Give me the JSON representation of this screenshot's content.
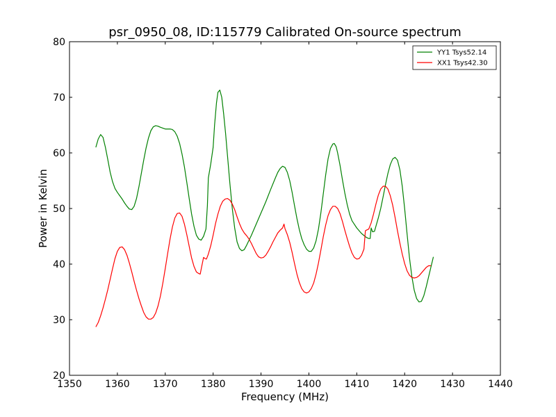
{
  "chart_data": {
    "type": "line",
    "title": "psr_0950_08, ID:115779 Calibrated On-source spectrum",
    "xlabel": "Frequency (MHz)",
    "ylabel": "Power in Kelvin",
    "xlim": [
      1350,
      1440
    ],
    "ylim": [
      20,
      80
    ],
    "xticks": [
      1350,
      1360,
      1370,
      1380,
      1390,
      1400,
      1410,
      1420,
      1430,
      1440
    ],
    "yticks": [
      20,
      30,
      40,
      50,
      60,
      70,
      80
    ],
    "grid": false,
    "legend_position": "top-right",
    "series": [
      {
        "name": "YY1 Tsys52.14",
        "color": "#008000",
        "points": [
          [
            1355.5,
            61.0
          ],
          [
            1356.0,
            62.5
          ],
          [
            1356.5,
            63.3
          ],
          [
            1357.0,
            62.8
          ],
          [
            1357.5,
            61.0
          ],
          [
            1358.0,
            58.8
          ],
          [
            1358.5,
            56.5
          ],
          [
            1359.0,
            54.8
          ],
          [
            1359.5,
            53.6
          ],
          [
            1360.0,
            52.9
          ],
          [
            1360.5,
            52.3
          ],
          [
            1361.0,
            51.7
          ],
          [
            1361.5,
            51.0
          ],
          [
            1362.0,
            50.4
          ],
          [
            1362.5,
            49.9
          ],
          [
            1363.0,
            49.8
          ],
          [
            1363.5,
            50.4
          ],
          [
            1364.0,
            51.8
          ],
          [
            1364.5,
            53.9
          ],
          [
            1365.0,
            56.3
          ],
          [
            1365.5,
            58.7
          ],
          [
            1366.0,
            60.9
          ],
          [
            1366.5,
            62.7
          ],
          [
            1367.0,
            64.0
          ],
          [
            1367.5,
            64.7
          ],
          [
            1368.0,
            64.9
          ],
          [
            1368.5,
            64.8
          ],
          [
            1369.0,
            64.6
          ],
          [
            1370.0,
            64.3
          ],
          [
            1371.0,
            64.3
          ],
          [
            1371.5,
            64.2
          ],
          [
            1372.0,
            63.8
          ],
          [
            1372.5,
            63.0
          ],
          [
            1373.0,
            61.7
          ],
          [
            1373.5,
            59.8
          ],
          [
            1374.0,
            57.5
          ],
          [
            1374.5,
            54.7
          ],
          [
            1375.0,
            51.8
          ],
          [
            1375.5,
            49.0
          ],
          [
            1376.0,
            46.8
          ],
          [
            1376.5,
            45.2
          ],
          [
            1377.0,
            44.5
          ],
          [
            1377.5,
            44.3
          ],
          [
            1378.0,
            45.0
          ],
          [
            1378.5,
            46.3
          ],
          [
            1378.8,
            50.5
          ],
          [
            1379.0,
            55.5
          ],
          [
            1379.5,
            58.0
          ],
          [
            1380.0,
            61.0
          ],
          [
            1380.3,
            65.0
          ],
          [
            1380.7,
            69.0
          ],
          [
            1381.0,
            70.9
          ],
          [
            1381.4,
            71.3
          ],
          [
            1381.8,
            70.0
          ],
          [
            1382.2,
            67.0
          ],
          [
            1382.6,
            63.5
          ],
          [
            1383.0,
            59.5
          ],
          [
            1383.5,
            54.5
          ],
          [
            1384.0,
            50.0
          ],
          [
            1384.5,
            46.5
          ],
          [
            1385.0,
            44.0
          ],
          [
            1385.5,
            42.8
          ],
          [
            1386.0,
            42.4
          ],
          [
            1386.5,
            42.6
          ],
          [
            1387.0,
            43.4
          ],
          [
            1388.0,
            45.2
          ],
          [
            1389.0,
            47.2
          ],
          [
            1390.0,
            49.2
          ],
          [
            1391.0,
            51.2
          ],
          [
            1392.0,
            53.4
          ],
          [
            1393.0,
            55.5
          ],
          [
            1393.5,
            56.5
          ],
          [
            1394.0,
            57.2
          ],
          [
            1394.5,
            57.6
          ],
          [
            1395.0,
            57.4
          ],
          [
            1395.5,
            56.5
          ],
          [
            1396.0,
            55.0
          ],
          [
            1396.5,
            52.9
          ],
          [
            1397.0,
            50.5
          ],
          [
            1397.5,
            48.2
          ],
          [
            1398.0,
            46.2
          ],
          [
            1398.5,
            44.6
          ],
          [
            1399.0,
            43.5
          ],
          [
            1399.5,
            42.7
          ],
          [
            1400.0,
            42.3
          ],
          [
            1400.5,
            42.3
          ],
          [
            1401.0,
            42.9
          ],
          [
            1401.5,
            44.2
          ],
          [
            1402.0,
            46.3
          ],
          [
            1402.5,
            49.2
          ],
          [
            1403.0,
            52.6
          ],
          [
            1403.5,
            56.0
          ],
          [
            1404.0,
            58.9
          ],
          [
            1404.5,
            60.8
          ],
          [
            1405.0,
            61.6
          ],
          [
            1405.3,
            61.7
          ],
          [
            1405.7,
            61.1
          ],
          [
            1406.0,
            60.0
          ],
          [
            1406.5,
            57.8
          ],
          [
            1407.0,
            55.2
          ],
          [
            1407.5,
            52.8
          ],
          [
            1408.0,
            50.7
          ],
          [
            1408.5,
            49.0
          ],
          [
            1409.0,
            47.8
          ],
          [
            1410.0,
            46.5
          ],
          [
            1411.0,
            45.5
          ],
          [
            1412.0,
            44.8
          ],
          [
            1412.5,
            44.6
          ],
          [
            1412.8,
            44.6
          ],
          [
            1413.0,
            46.5
          ],
          [
            1413.3,
            45.8
          ],
          [
            1413.7,
            45.9
          ],
          [
            1414.0,
            46.8
          ],
          [
            1414.5,
            48.3
          ],
          [
            1415.0,
            50.0
          ],
          [
            1415.5,
            52.1
          ],
          [
            1416.0,
            54.3
          ],
          [
            1416.5,
            56.3
          ],
          [
            1417.0,
            57.9
          ],
          [
            1417.5,
            58.9
          ],
          [
            1418.0,
            59.2
          ],
          [
            1418.5,
            58.7
          ],
          [
            1419.0,
            57.0
          ],
          [
            1419.5,
            54.0
          ],
          [
            1420.0,
            50.0
          ],
          [
            1420.5,
            45.5
          ],
          [
            1421.0,
            41.2
          ],
          [
            1421.5,
            37.8
          ],
          [
            1422.0,
            35.3
          ],
          [
            1422.5,
            33.8
          ],
          [
            1423.0,
            33.2
          ],
          [
            1423.5,
            33.3
          ],
          [
            1424.0,
            34.3
          ],
          [
            1424.5,
            35.9
          ],
          [
            1425.0,
            37.7
          ],
          [
            1425.5,
            39.5
          ],
          [
            1426.0,
            41.3
          ]
        ]
      },
      {
        "name": "XX1 Tsys42.30",
        "color": "#ff0000",
        "points": [
          [
            1355.5,
            28.7
          ],
          [
            1356.0,
            29.5
          ],
          [
            1356.5,
            30.7
          ],
          [
            1357.0,
            32.1
          ],
          [
            1357.5,
            33.7
          ],
          [
            1358.0,
            35.4
          ],
          [
            1358.5,
            37.3
          ],
          [
            1359.0,
            39.2
          ],
          [
            1359.5,
            41.0
          ],
          [
            1360.0,
            42.3
          ],
          [
            1360.5,
            43.0
          ],
          [
            1361.0,
            43.1
          ],
          [
            1361.5,
            42.6
          ],
          [
            1362.0,
            41.6
          ],
          [
            1362.5,
            40.2
          ],
          [
            1363.0,
            38.6
          ],
          [
            1363.5,
            36.9
          ],
          [
            1364.0,
            35.3
          ],
          [
            1364.5,
            33.8
          ],
          [
            1365.0,
            32.5
          ],
          [
            1365.5,
            31.3
          ],
          [
            1366.0,
            30.5
          ],
          [
            1366.5,
            30.1
          ],
          [
            1367.0,
            30.1
          ],
          [
            1367.5,
            30.4
          ],
          [
            1368.0,
            31.2
          ],
          [
            1368.5,
            32.5
          ],
          [
            1369.0,
            34.3
          ],
          [
            1369.5,
            36.6
          ],
          [
            1370.0,
            39.2
          ],
          [
            1370.5,
            41.9
          ],
          [
            1371.0,
            44.5
          ],
          [
            1371.5,
            46.7
          ],
          [
            1372.0,
            48.3
          ],
          [
            1372.5,
            49.1
          ],
          [
            1373.0,
            49.2
          ],
          [
            1373.5,
            48.6
          ],
          [
            1374.0,
            47.2
          ],
          [
            1374.5,
            45.3
          ],
          [
            1375.0,
            43.2
          ],
          [
            1375.5,
            41.1
          ],
          [
            1376.0,
            39.6
          ],
          [
            1376.5,
            38.6
          ],
          [
            1377.0,
            38.3
          ],
          [
            1377.3,
            38.2
          ],
          [
            1377.6,
            39.5
          ],
          [
            1378.0,
            41.2
          ],
          [
            1378.3,
            41.0
          ],
          [
            1378.6,
            40.9
          ],
          [
            1379.0,
            41.8
          ],
          [
            1379.5,
            43.3
          ],
          [
            1380.0,
            45.2
          ],
          [
            1380.5,
            47.3
          ],
          [
            1381.0,
            49.0
          ],
          [
            1381.5,
            50.4
          ],
          [
            1382.0,
            51.3
          ],
          [
            1382.5,
            51.7
          ],
          [
            1383.0,
            51.8
          ],
          [
            1383.5,
            51.5
          ],
          [
            1384.0,
            50.8
          ],
          [
            1384.5,
            49.8
          ],
          [
            1385.0,
            48.5
          ],
          [
            1385.5,
            47.3
          ],
          [
            1386.0,
            46.3
          ],
          [
            1386.5,
            45.6
          ],
          [
            1387.0,
            45.1
          ],
          [
            1387.5,
            44.5
          ],
          [
            1388.0,
            43.7
          ],
          [
            1388.5,
            42.8
          ],
          [
            1389.0,
            41.9
          ],
          [
            1389.5,
            41.3
          ],
          [
            1390.0,
            41.1
          ],
          [
            1390.5,
            41.2
          ],
          [
            1391.0,
            41.6
          ],
          [
            1391.5,
            42.3
          ],
          [
            1392.0,
            43.1
          ],
          [
            1392.5,
            44.0
          ],
          [
            1393.0,
            44.8
          ],
          [
            1393.5,
            45.6
          ],
          [
            1394.0,
            46.1
          ],
          [
            1394.5,
            46.5
          ],
          [
            1394.8,
            47.2
          ],
          [
            1395.0,
            46.4
          ],
          [
            1395.5,
            45.3
          ],
          [
            1396.0,
            43.9
          ],
          [
            1396.5,
            42.1
          ],
          [
            1397.0,
            40.1
          ],
          [
            1397.5,
            38.2
          ],
          [
            1398.0,
            36.7
          ],
          [
            1398.5,
            35.6
          ],
          [
            1399.0,
            35.0
          ],
          [
            1399.5,
            34.8
          ],
          [
            1400.0,
            35.0
          ],
          [
            1400.5,
            35.6
          ],
          [
            1401.0,
            36.6
          ],
          [
            1401.5,
            38.2
          ],
          [
            1402.0,
            40.2
          ],
          [
            1402.5,
            42.5
          ],
          [
            1403.0,
            44.9
          ],
          [
            1403.5,
            47.0
          ],
          [
            1404.0,
            48.7
          ],
          [
            1404.5,
            49.8
          ],
          [
            1405.0,
            50.4
          ],
          [
            1405.5,
            50.4
          ],
          [
            1406.0,
            50.0
          ],
          [
            1406.5,
            49.1
          ],
          [
            1407.0,
            47.7
          ],
          [
            1407.5,
            46.1
          ],
          [
            1408.0,
            44.6
          ],
          [
            1408.5,
            43.2
          ],
          [
            1409.0,
            42.0
          ],
          [
            1409.5,
            41.2
          ],
          [
            1410.0,
            40.9
          ],
          [
            1410.5,
            41.0
          ],
          [
            1411.0,
            41.6
          ],
          [
            1411.5,
            42.7
          ],
          [
            1411.8,
            46.0
          ],
          [
            1412.0,
            46.1
          ],
          [
            1412.5,
            46.3
          ],
          [
            1413.0,
            47.4
          ],
          [
            1413.5,
            49.0
          ],
          [
            1414.0,
            50.8
          ],
          [
            1414.5,
            52.4
          ],
          [
            1415.0,
            53.5
          ],
          [
            1415.5,
            54.0
          ],
          [
            1416.0,
            54.0
          ],
          [
            1416.5,
            53.5
          ],
          [
            1417.0,
            52.3
          ],
          [
            1417.5,
            50.6
          ],
          [
            1418.0,
            48.4
          ],
          [
            1418.5,
            46.0
          ],
          [
            1419.0,
            43.8
          ],
          [
            1419.5,
            41.8
          ],
          [
            1420.0,
            40.1
          ],
          [
            1420.5,
            38.8
          ],
          [
            1421.0,
            38.0
          ],
          [
            1421.5,
            37.6
          ],
          [
            1422.0,
            37.5
          ],
          [
            1422.5,
            37.6
          ],
          [
            1423.0,
            37.9
          ],
          [
            1423.5,
            38.4
          ],
          [
            1424.0,
            38.9
          ],
          [
            1424.5,
            39.4
          ],
          [
            1425.0,
            39.7
          ],
          [
            1425.5,
            39.7
          ]
        ]
      }
    ]
  }
}
